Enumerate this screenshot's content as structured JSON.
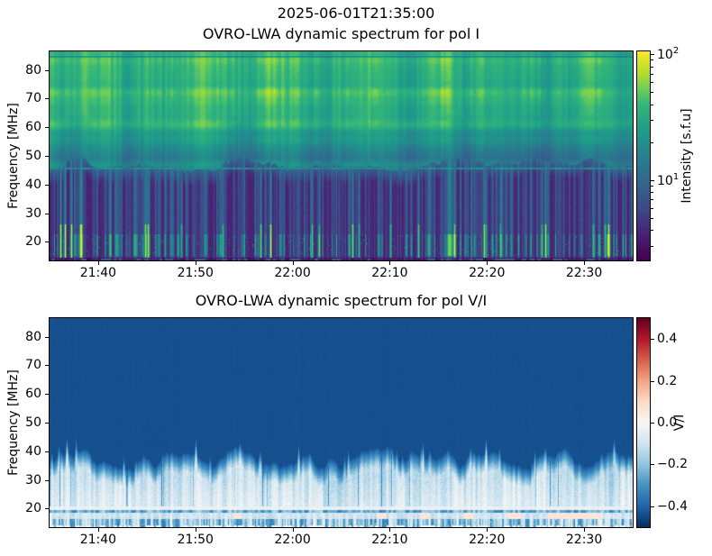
{
  "figure": {
    "suptitle": "2025-06-01T21:35:00",
    "background": "#ffffff",
    "text_color": "#000000"
  },
  "chart_data": [
    {
      "type": "heatmap",
      "title": "OVRO-LWA dynamic spectrum for pol I",
      "ylabel": "Frequency [MHz]",
      "x_axis": {
        "start": "21:35",
        "end": "22:35",
        "ticks": [
          {
            "label": "21:40",
            "min": 5
          },
          {
            "label": "21:50",
            "min": 15
          },
          {
            "label": "22:00",
            "min": 25
          },
          {
            "label": "22:10",
            "min": 35
          },
          {
            "label": "22:20",
            "min": 45
          },
          {
            "label": "22:30",
            "min": 55
          }
        ]
      },
      "y_axis": {
        "min_mhz": 13.5,
        "max_mhz": 86.5,
        "ticks": [
          80,
          70,
          60,
          50,
          40,
          30,
          20
        ]
      },
      "colormap": "viridis",
      "colorbar": {
        "label": "Intensity [s.f.u]",
        "scale": "log",
        "min": 2.3,
        "max": 105,
        "major_ticks": [
          {
            "base": "10",
            "exp": "2",
            "value": 100
          },
          {
            "base": "10",
            "exp": "1",
            "value": 10
          }
        ],
        "minor_tick_values": [
          3,
          4,
          5,
          6,
          7,
          8,
          9,
          20,
          30,
          40,
          50,
          60,
          70,
          80,
          90
        ]
      },
      "features": [
        "Bright yellow-green broadband emission above ~50 MHz throughout the hour with vertical striation and yellow patches",
        "Wavy transition boundary near 44-49 MHz",
        "Dark purple-blue quiet band between ~20 and 45 MHz crossed by narrow teal vertical striations",
        "Sporadic bright yellow radio bursts, strongest between ~15 and 22 MHz",
        "Thin teal horizontal interference line near 45.5 MHz and a darker line near 85 MHz",
        "Dark band along the bottom edge below ~14.5 MHz with occasional bright dashes"
      ],
      "render": {
        "seed": 42,
        "boundary_mhz": 46.5,
        "boundary_amp": 3.2,
        "burst_rate": 0.05,
        "log_min": 0.36,
        "log_max": 2.02,
        "line_mhz": 45.6,
        "topline_mhz": 84.7,
        "dark_edge_mhz": 14.4,
        "low_band": [
          15.2,
          22.5
        ]
      }
    },
    {
      "type": "heatmap",
      "title": "OVRO-LWA dynamic spectrum for pol V/I",
      "ylabel": "Frequency [MHz]",
      "x_axis": {
        "start": "21:35",
        "end": "22:35",
        "ticks": [
          {
            "label": "21:40",
            "min": 5
          },
          {
            "label": "21:50",
            "min": 15
          },
          {
            "label": "22:00",
            "min": 25
          },
          {
            "label": "22:10",
            "min": 35
          },
          {
            "label": "22:20",
            "min": 45
          },
          {
            "label": "22:30",
            "min": 55
          }
        ]
      },
      "y_axis": {
        "min_mhz": 13.5,
        "max_mhz": 86.5,
        "ticks": [
          80,
          70,
          60,
          50,
          40,
          30,
          20
        ]
      },
      "colormap": "RdBu_r",
      "colorbar": {
        "label": "V/I",
        "scale": "linear",
        "min": -0.5,
        "max": 0.5,
        "ticks": [
          {
            "label": "0.4",
            "value": 0.4
          },
          {
            "label": "0.2",
            "value": 0.2
          },
          {
            "label": "0.0",
            "value": 0.0
          },
          {
            "label": "−0.2",
            "value": -0.2
          },
          {
            "label": "−0.4",
            "value": -0.4
          }
        ]
      },
      "features": [
        "Uniform dark navy (V/I ≈ −0.45) above ~42 MHz",
        "Faint dotted lighter horizontal line near 45.5 MHz",
        "Grass-like field of light-blue/white vertical spikes below a wavy ~34-45 MHz boundary",
        "Near-white horizontal band around 20 MHz with a darker blue band just below",
        "Pale salmon (slightly positive V/I) patches near 17-21 MHz",
        "Streaky mixed blue band along the bottom edge"
      ],
      "render": {
        "seed": 11,
        "background_v": -0.44,
        "grass_top_mhz": 37.5,
        "grass_amp_mhz": 4,
        "spike_rate": 0.05,
        "line_mhz": 45.6,
        "white_band": [
          19.6,
          20.8
        ],
        "blue_band": [
          18.4,
          19.6
        ],
        "lower_band": [
          16.2,
          18.4
        ],
        "salmon_v": 0.06
      }
    }
  ]
}
